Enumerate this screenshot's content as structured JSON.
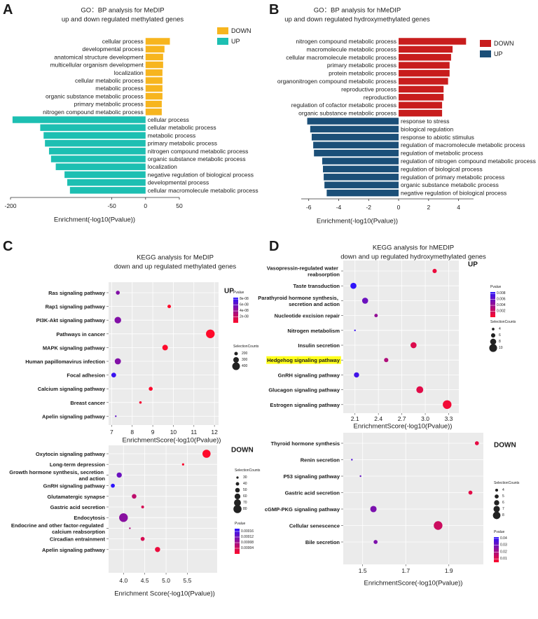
{
  "chart_data": [
    {
      "type": "bar",
      "panel": "A",
      "title": "GO：BP analysis for MeDIP",
      "subtitle": "up and down regulated methylated genes",
      "xlabel": "Enrichment(-log10(Pvalue))",
      "xlim": [
        -200,
        50
      ],
      "xticks": [
        -200,
        -50,
        0,
        50
      ],
      "series": [
        {
          "name": "DOWN",
          "color": "#f7b51e",
          "categories": [
            "cellular process",
            "developmental process",
            "anatomical structure development",
            "multicellular organism development",
            "localization",
            "cellular metabolic process",
            "metabolic process",
            "organic substance metabolic process",
            "primary metabolic process",
            "nitrogen compound metabolic process"
          ],
          "values": [
            36,
            28,
            26,
            26,
            25,
            25,
            25,
            25,
            24,
            24
          ]
        },
        {
          "name": "UP",
          "color": "#1dbfb2",
          "categories": [
            "cellular process",
            "cellular metabolic process",
            "metabolic process",
            "primary metabolic process",
            "nitrogen compound metabolic process",
            "organic substance metabolic process",
            "localization",
            "negative regulation of biological process",
            "developmental process",
            "cellular macromolecule metabolic process"
          ],
          "values": [
            -197,
            -156,
            -151,
            -149,
            -143,
            -140,
            -133,
            -120,
            -116,
            -112
          ]
        }
      ]
    },
    {
      "type": "bar",
      "panel": "B",
      "title": "GO：BP analysis for hMeDIP",
      "subtitle": "up and down regulated hydroxymethylated genes",
      "xlabel": "Enrichment(-log10(Pvalue))",
      "xlim": [
        -6.5,
        5
      ],
      "xticks": [
        -6,
        -4,
        -2,
        0,
        2,
        4
      ],
      "series": [
        {
          "name": "DOWN",
          "color": "#c81d1d",
          "categories": [
            "nitrogen compound metabolic process",
            "macromolecule metabolic process",
            "cellular macromolecule metabolic process",
            "primary metabolic process",
            "protein metabolic process",
            "organonitrogen compound metabolic process",
            "reproductive process",
            "reproduction",
            "regulation of cofactor metabolic process",
            "organic substance metabolic process"
          ],
          "values": [
            4.5,
            3.6,
            3.5,
            3.4,
            3.4,
            3.3,
            3.0,
            3.0,
            2.9,
            2.9
          ]
        },
        {
          "name": "UP",
          "color": "#1b4f78",
          "categories": [
            "response to stress",
            "biological regulation",
            "response to abiotic stimulus",
            "regulation of macromolecule metabolic process",
            "regulation of metabolic process",
            "regulation of nitrogen compound metabolic process",
            "regulation of biological process",
            "regulation of primary metabolic process",
            "organic substance metabolic process",
            "negative regulation of biological process"
          ],
          "values": [
            -6.1,
            -5.9,
            -5.8,
            -5.7,
            -5.65,
            -5.1,
            -5.05,
            -5.0,
            -4.95,
            -4.8
          ]
        }
      ]
    },
    {
      "type": "dot",
      "panel": "C",
      "title": "KEGG analysis for MeDIP",
      "subtitle": "down and up regulated methylated genes",
      "tag": "UP",
      "xlabel": "EnrichmentScore(-log10(Pvalue))",
      "xlim": [
        6.85,
        12.2
      ],
      "xticks": [
        7,
        8,
        9,
        10,
        11,
        12
      ],
      "categories": [
        "Ras signaling pathway",
        "Rap1 signaling pathway",
        "PI3K-Akt signaling pathway",
        "Pathways in cancer",
        "MAPK signaling pathway",
        "Human papillomavirus infection",
        "Focal adhesion",
        "Calcium signaling pathway",
        "Breast cancer",
        "Apelin signaling pathway"
      ],
      "values": [
        7.3,
        9.8,
        7.3,
        11.8,
        9.6,
        7.3,
        7.1,
        8.9,
        8.4,
        7.2
      ],
      "sizes": [
        220,
        200,
        350,
        450,
        300,
        330,
        260,
        220,
        150,
        110
      ],
      "pvalues": [
        5e-08,
        1.6e-10,
        5e-08,
        1.6e-12,
        2.5e-10,
        5e-08,
        7.9e-08,
        1.3e-09,
        4e-09,
        6.3e-08
      ],
      "colors": [
        "#ff0a2a",
        "#2a14ff"
      ],
      "clim": [
        0,
        8.5e-08
      ],
      "ctitle": "Pvalue",
      "cticks": [
        {
          "value": 8e-08,
          "label": "8e-08"
        },
        {
          "value": 6e-08,
          "label": "6e-08"
        },
        {
          "value": 4e-08,
          "label": "4e-08"
        },
        {
          "value": 2e-08,
          "label": "2e-08"
        }
      ],
      "stitle": "SelectionCounts",
      "sticks": [
        200,
        300,
        400
      ]
    },
    {
      "type": "dot",
      "tag": "DOWN",
      "xlabel": "Enrichment Score(-log10(Pvalue))",
      "xlim": [
        3.65,
        6.2
      ],
      "xticks": [
        {
          "value": 4,
          "label": "4.0"
        },
        4.5,
        {
          "value": 5,
          "label": "5.0"
        },
        5.5
      ],
      "categories": [
        "Oxytocin signaling pathway",
        "Long-term depression",
        "Growth hormone synthesis, secretion and action",
        "GnRH signaling pathway",
        "Glutamatergic synapse",
        "Gastric acid secretion",
        "Endocytosis",
        "Endocrine and other factor-regulated calcium reabsorption",
        "Circadian entrainment",
        "Apelin signaling pathway"
      ],
      "values": [
        5.95,
        5.4,
        3.9,
        3.75,
        4.25,
        4.45,
        4.0,
        4.15,
        4.45,
        4.8
      ],
      "sizes": [
        80,
        30,
        55,
        45,
        50,
        35,
        85,
        25,
        45,
        55
      ],
      "pvalues": [
        1.1e-06,
        4e-06,
        0.000126,
        0.000178,
        5.6e-05,
        3.5e-05,
        0.0001,
        7.1e-05,
        3.5e-05,
        1.6e-05
      ],
      "colors": [
        "#ff0a2a",
        "#2a14ff"
      ],
      "clim": [
        0,
        0.00018
      ],
      "ctitle": "Pvalue",
      "cticks": [
        0.00016,
        0.00012,
        8e-05,
        4e-05
      ],
      "stitle": "SelectionCounts",
      "sticks": [
        30,
        40,
        50,
        60,
        70,
        80
      ]
    },
    {
      "type": "dot",
      "panel": "D",
      "title": "KEGG analysis for hMEDIP",
      "subtitle": "down and up regulated hydroxymethylated genes",
      "tag": "UP",
      "xlabel": "EnrichmentScore(-log10(Pvalue))",
      "xlim": [
        1.95,
        3.43
      ],
      "xticks": [
        2.1,
        2.4,
        2.7,
        {
          "value": 3,
          "label": "3.0"
        },
        3.3
      ],
      "categories": [
        "Vasopressin-regulated water reabsorption",
        "Taste transduction",
        "Parathyroid hormone synthesis, secretion and action",
        "Nucleotide excision repair",
        "Nitrogen metabolism",
        "Insulin secretion",
        "Hedgehog signaling pathway",
        "GnRH signaling pathway",
        "Glucagon signaling pathway",
        "Estrogen signaling pathway"
      ],
      "highlight": 6,
      "highlight_color": "#ffff1a",
      "values": [
        3.12,
        2.08,
        2.23,
        2.37,
        2.1,
        2.85,
        2.5,
        2.12,
        2.93,
        3.28
      ],
      "sizes": [
        6,
        8,
        8,
        5,
        3,
        8,
        6,
        7,
        9,
        11
      ],
      "pvalues": [
        0.00076,
        0.0083,
        0.0059,
        0.0043,
        0.0079,
        0.0014,
        0.0032,
        0.0076,
        0.0012,
        0.00052
      ],
      "colors": [
        "#ff0a2a",
        "#2a14ff"
      ],
      "clim": [
        0,
        0.0085
      ],
      "ctitle": "Pvalue",
      "cticks": [
        0.008,
        0.006,
        0.004,
        0.002
      ],
      "stitle": "SelectionCounts",
      "sticks": [
        4,
        6,
        8,
        10
      ]
    },
    {
      "type": "dot",
      "tag": "DOWN",
      "xlabel": "EnrichmentScore(-log10(Pvalue))",
      "xlim": [
        1.41,
        2.06
      ],
      "xticks": [
        1.5,
        1.7,
        1.9
      ],
      "categories": [
        "Thyroid hormone synthesis",
        "Renin secretion",
        "P53 signaling pathway",
        "Gastric acid secretion",
        "cGMP-PKG signaling pathway",
        "Cellular senescence",
        "Bile secretion"
      ],
      "values": [
        2.03,
        1.45,
        1.49,
        2.0,
        1.55,
        1.85,
        1.56
      ],
      "sizes": [
        5,
        3,
        3,
        5,
        7,
        9,
        5
      ],
      "pvalues": [
        0.0093,
        0.035,
        0.032,
        0.01,
        0.028,
        0.014,
        0.0275
      ],
      "colors": [
        "#ff0a2a",
        "#2a14ff"
      ],
      "clim": [
        0.005,
        0.042
      ],
      "ctitle": "Pvalue",
      "cticks": [
        0.04,
        0.03,
        0.02,
        0.01
      ],
      "stitle": "SelectionCounts",
      "sticks": [
        4,
        5,
        6,
        7,
        8
      ]
    }
  ]
}
